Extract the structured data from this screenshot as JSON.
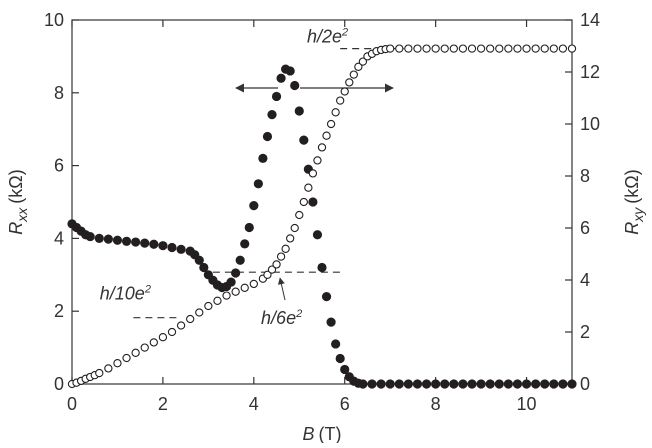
{
  "chart_data": {
    "type": "scatter",
    "xlabel": {
      "symbol": "B",
      "unit": "(T)"
    },
    "ylabel": {
      "symbol": "R",
      "subscript": "xx",
      "unit": "(kΩ)"
    },
    "y2label": {
      "symbol": "R",
      "subscript": "xy",
      "unit": "(kΩ)"
    },
    "xlim": [
      0,
      11
    ],
    "xticks": [
      0,
      2,
      4,
      6,
      8,
      10
    ],
    "ylim": [
      0,
      10
    ],
    "yticks": [
      0,
      2,
      4,
      6,
      8,
      10
    ],
    "y2lim": [
      0,
      14
    ],
    "y2ticks": [
      0,
      2,
      4,
      6,
      8,
      10,
      12,
      14
    ],
    "series": [
      {
        "color": "#231f20",
        "marker": "filled",
        "x": [
          0,
          0.1,
          0.2,
          0.3,
          0.4,
          0.6,
          0.8,
          1.0,
          1.2,
          1.4,
          1.6,
          1.8,
          2.0,
          2.2,
          2.4,
          2.6,
          2.7,
          2.8,
          2.9,
          3.0,
          3.1,
          3.2,
          3.3,
          3.4,
          3.5,
          3.6,
          3.7,
          3.8,
          3.9,
          4.0,
          4.1,
          4.2,
          4.3,
          4.4,
          4.5,
          4.6,
          4.7,
          4.8,
          4.9,
          5.0,
          5.1,
          5.2,
          5.3,
          5.4,
          5.5,
          5.6,
          5.7,
          5.8,
          5.9,
          6.0,
          6.1,
          6.2,
          6.3,
          6.4,
          6.6,
          6.8,
          7.0,
          7.2,
          7.4,
          7.6,
          7.8,
          8.0,
          8.2,
          8.4,
          8.6,
          8.8,
          9.0,
          9.2,
          9.4,
          9.6,
          9.8,
          10.0,
          10.2,
          10.4,
          10.6,
          10.8,
          11.0
        ],
        "values": [
          4.4,
          4.3,
          4.2,
          4.1,
          4.05,
          4.0,
          3.98,
          3.95,
          3.92,
          3.9,
          3.87,
          3.84,
          3.8,
          3.75,
          3.7,
          3.65,
          3.55,
          3.4,
          3.2,
          3.0,
          2.85,
          2.72,
          2.65,
          2.68,
          2.8,
          3.05,
          3.4,
          3.85,
          4.3,
          4.9,
          5.5,
          6.2,
          6.8,
          7.4,
          7.9,
          8.4,
          8.65,
          8.6,
          8.2,
          7.5,
          6.7,
          5.9,
          5.0,
          4.1,
          3.2,
          2.4,
          1.7,
          1.1,
          0.7,
          0.4,
          0.2,
          0.08,
          0.02,
          0,
          0,
          0,
          0,
          0,
          0,
          0,
          0,
          0,
          0,
          0,
          0,
          0,
          0,
          0,
          0,
          0,
          0,
          0,
          0,
          0,
          0,
          0,
          0
        ]
      },
      {
        "color": "#231f20",
        "marker": "open",
        "axis": "y2",
        "x": [
          0,
          0.1,
          0.2,
          0.3,
          0.4,
          0.5,
          0.6,
          0.8,
          1.0,
          1.2,
          1.4,
          1.6,
          1.8,
          2.0,
          2.2,
          2.4,
          2.6,
          2.8,
          3.0,
          3.2,
          3.4,
          3.6,
          3.8,
          4.0,
          4.2,
          4.3,
          4.4,
          4.5,
          4.6,
          4.7,
          4.8,
          4.9,
          5.0,
          5.1,
          5.2,
          5.3,
          5.4,
          5.5,
          5.6,
          5.7,
          5.8,
          5.9,
          6.0,
          6.1,
          6.2,
          6.3,
          6.4,
          6.5,
          6.6,
          6.7,
          6.8,
          6.9,
          7.0,
          7.2,
          7.4,
          7.6,
          7.8,
          8.0,
          8.2,
          8.4,
          8.6,
          8.8,
          9.0,
          9.2,
          9.4,
          9.6,
          9.8,
          10.0,
          10.2,
          10.4,
          10.6,
          10.8,
          11.0
        ],
        "values": [
          0,
          0.05,
          0.12,
          0.2,
          0.27,
          0.34,
          0.42,
          0.6,
          0.8,
          1.0,
          1.2,
          1.4,
          1.6,
          1.8,
          2.0,
          2.25,
          2.5,
          2.75,
          3.0,
          3.2,
          3.4,
          3.55,
          3.7,
          3.85,
          4.05,
          4.2,
          4.4,
          4.6,
          4.9,
          5.2,
          5.6,
          6.0,
          6.5,
          7.0,
          7.55,
          8.1,
          8.6,
          9.1,
          9.55,
          10.0,
          10.45,
          10.9,
          11.25,
          11.6,
          11.9,
          12.2,
          12.4,
          12.6,
          12.7,
          12.8,
          12.85,
          12.88,
          12.9,
          12.9,
          12.9,
          12.9,
          12.9,
          12.9,
          12.9,
          12.9,
          12.9,
          12.9,
          12.9,
          12.9,
          12.9,
          12.9,
          12.9,
          12.9,
          12.9,
          12.9,
          12.9,
          12.9,
          12.9
        ]
      }
    ],
    "reference_lines": [
      {
        "text": {
          "base": "h/2e",
          "sup": "2"
        },
        "value": 12.9,
        "x": [
          5.9,
          7.3
        ]
      },
      {
        "text": {
          "base": "h/6e",
          "sup": "2"
        },
        "value": 4.3,
        "x": [
          3.1,
          6.0
        ]
      },
      {
        "text": {
          "base": "h/10e",
          "sup": "2"
        },
        "value": 2.55,
        "x": [
          1.35,
          2.4
        ]
      }
    ]
  }
}
